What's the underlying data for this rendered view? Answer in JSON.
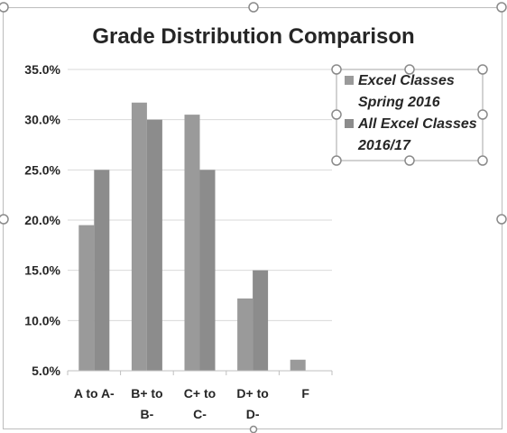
{
  "chart_data": {
    "type": "bar",
    "title": "Grade Distribution Comparison",
    "categories": [
      [
        "A to A-"
      ],
      [
        "B+ to",
        "B-"
      ],
      [
        "C+ to",
        "C-"
      ],
      [
        "D+ to",
        "D-"
      ],
      [
        "F"
      ]
    ],
    "series": [
      {
        "name_lines": [
          "Excel Classes",
          "Spring 2016"
        ],
        "values": [
          19.5,
          31.7,
          30.5,
          12.2,
          6.1
        ]
      },
      {
        "name_lines": [
          "All Excel Classes",
          "2016/17"
        ],
        "values": [
          25.0,
          30.0,
          25.0,
          15.0,
          null
        ]
      }
    ],
    "ylim": [
      5,
      35
    ],
    "yticks": [
      "35.0%",
      "30.0%",
      "25.0%",
      "20.0%",
      "15.0%",
      "10.0%",
      "5.0%"
    ],
    "ytick_values": [
      35,
      30,
      25,
      20,
      15,
      10,
      5
    ],
    "grid": true,
    "legend_position": "top-right",
    "colors": {
      "series1": "#9a9a9a",
      "series2": "#8c8c8c",
      "grid": "#d9d9d9",
      "axis": "#bfbfbf",
      "text": "#262626",
      "handles": "#8a8a8a"
    }
  }
}
